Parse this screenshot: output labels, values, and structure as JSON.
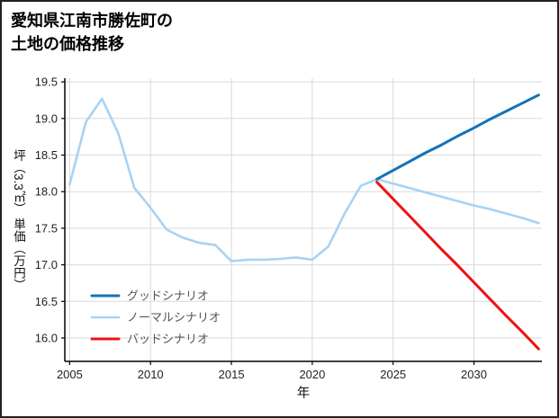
{
  "page": {
    "title_line1": "愛知県江南市勝佐町の",
    "title_line2": "土地の価格推移"
  },
  "chart_data": {
    "type": "line",
    "title": "愛知県江南市勝佐町の土地の価格推移",
    "xlabel": "年",
    "ylabel": "坪（3.3㎡） 単価（万円）",
    "xlim": [
      2004.7,
      2034.2
    ],
    "ylim": [
      15.68,
      19.55
    ],
    "xticks": [
      2005,
      2010,
      2015,
      2020,
      2025,
      2030
    ],
    "yticks": [
      16.0,
      16.5,
      17.0,
      17.5,
      18.0,
      18.5,
      19.0,
      19.5
    ],
    "grid": true,
    "legend_position": "lower-left",
    "colors": {
      "grid": "#d9d9d9",
      "axis": "#000000",
      "tick_label": "#222222",
      "legend_text": "#555555"
    },
    "series": [
      {
        "id": "good-scenario",
        "name": "グッドシナリオ",
        "color": "#1273b8",
        "width": 3,
        "x": [
          2024,
          2025,
          2026,
          2027,
          2028,
          2029,
          2030,
          2031,
          2032,
          2033,
          2034
        ],
        "y": [
          18.17,
          18.29,
          18.41,
          18.53,
          18.64,
          18.76,
          18.87,
          18.99,
          19.1,
          19.21,
          19.32
        ]
      },
      {
        "id": "normal-scenario",
        "name": "ノーマルシナリオ",
        "color": "#a8d2f3",
        "width": 2.6,
        "x": [
          2005,
          2006,
          2007,
          2008,
          2009,
          2010,
          2011,
          2012,
          2013,
          2014,
          2015,
          2016,
          2017,
          2018,
          2019,
          2020,
          2021,
          2022,
          2023,
          2024,
          2025,
          2026,
          2027,
          2028,
          2029,
          2030,
          2031,
          2032,
          2033,
          2034
        ],
        "y": [
          18.1,
          18.95,
          19.27,
          18.8,
          18.05,
          17.78,
          17.48,
          17.37,
          17.3,
          17.27,
          17.05,
          17.07,
          17.07,
          17.08,
          17.1,
          17.07,
          17.25,
          17.7,
          18.08,
          18.17,
          18.11,
          18.05,
          17.99,
          17.93,
          17.87,
          17.81,
          17.76,
          17.7,
          17.64,
          17.57
        ]
      },
      {
        "id": "bad-scenario",
        "name": "バッドシナリオ",
        "color": "#ee1111",
        "width": 3,
        "x": [
          2024,
          2025,
          2026,
          2027,
          2028,
          2029,
          2030,
          2031,
          2032,
          2033,
          2034
        ],
        "y": [
          18.13,
          17.9,
          17.67,
          17.44,
          17.21,
          16.99,
          16.76,
          16.53,
          16.3,
          16.08,
          15.85
        ]
      }
    ]
  }
}
